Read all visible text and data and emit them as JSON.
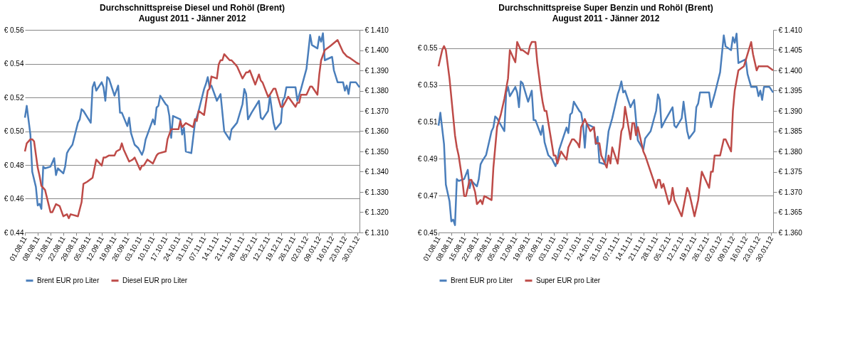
{
  "chart_data": [
    {
      "type": "line",
      "title": "Durchschnittspreise Diesel und Rohöl (Brent)",
      "subtitle": "August 2011 - Jänner 2012",
      "grid": "y",
      "legend": "bottom",
      "xlim": [
        "2011-08-01",
        "2012-01-31"
      ],
      "xticks": [
        {
          "value": "2011-08-01",
          "label": "01.08.11"
        },
        {
          "value": "2011-08-08",
          "label": "08.08.11"
        },
        {
          "value": "2011-08-15",
          "label": "15.08.11"
        },
        {
          "value": "2011-08-22",
          "label": "22.08.11"
        },
        {
          "value": "2011-08-29",
          "label": "29.08.11"
        },
        {
          "value": "2011-09-05",
          "label": "05.09.11"
        },
        {
          "value": "2011-09-12",
          "label": "12.09.11"
        },
        {
          "value": "2011-09-19",
          "label": "19.09.11"
        },
        {
          "value": "2011-09-26",
          "label": "26.09.11"
        },
        {
          "value": "2011-10-03",
          "label": "03.10.11"
        },
        {
          "value": "2011-10-10",
          "label": "10.10.11"
        },
        {
          "value": "2011-10-17",
          "label": "17.10.11"
        },
        {
          "value": "2011-10-24",
          "label": "24.10.11"
        },
        {
          "value": "2011-10-31",
          "label": "31.10.11"
        },
        {
          "value": "2011-11-07",
          "label": "07.11.11"
        },
        {
          "value": "2011-11-14",
          "label": "14.11.11"
        },
        {
          "value": "2011-11-21",
          "label": "21.11.11"
        },
        {
          "value": "2011-11-28",
          "label": "28.11.11"
        },
        {
          "value": "2011-12-05",
          "label": "05.12.11"
        },
        {
          "value": "2011-12-12",
          "label": "12.12.11"
        },
        {
          "value": "2011-12-19",
          "label": "19.12.11"
        },
        {
          "value": "2011-12-26",
          "label": "26.12.11"
        },
        {
          "value": "2012-01-02",
          "label": "02.01.12"
        },
        {
          "value": "2012-01-09",
          "label": "09.01.12"
        },
        {
          "value": "2012-01-16",
          "label": "16.01.12"
        },
        {
          "value": "2012-01-23",
          "label": "23.01.12"
        },
        {
          "value": "2012-01-30",
          "label": "30.01.12"
        }
      ],
      "ylim": [
        0.44,
        0.56
      ],
      "yticks": [
        {
          "value": 0.44,
          "label": "€ 0.44"
        },
        {
          "value": 0.46,
          "label": "€ 0.46"
        },
        {
          "value": 0.48,
          "label": "€ 0.48"
        },
        {
          "value": 0.5,
          "label": "€ 0.50"
        },
        {
          "value": 0.52,
          "label": "€ 0.52"
        },
        {
          "value": 0.54,
          "label": "€ 0.54"
        },
        {
          "value": 0.56,
          "label": "€ 0.56"
        }
      ],
      "y2lim": [
        1.31,
        1.41
      ],
      "y2ticks": [
        {
          "value": 1.31,
          "label": "€ 1.310"
        },
        {
          "value": 1.32,
          "label": "€ 1.320"
        },
        {
          "value": 1.33,
          "label": "€ 1.330"
        },
        {
          "value": 1.34,
          "label": "€ 1.340"
        },
        {
          "value": 1.35,
          "label": "€ 1.350"
        },
        {
          "value": 1.36,
          "label": "€ 1.360"
        },
        {
          "value": 1.37,
          "label": "€ 1.370"
        },
        {
          "value": 1.38,
          "label": "€ 1.380"
        },
        {
          "value": 1.39,
          "label": "€ 1.390"
        },
        {
          "value": 1.4,
          "label": "€ 1.400"
        },
        {
          "value": 1.41,
          "label": "€ 1.410"
        }
      ],
      "series": [
        {
          "name": "Brent EUR pro Liter",
          "color": "#4a7ebb",
          "x": [
            "2011-08-01",
            "2011-08-02",
            "2011-08-04",
            "2011-08-05",
            "2011-08-07",
            "2011-08-08",
            "2011-08-09",
            "2011-08-10",
            "2011-08-11",
            "2011-08-12",
            "2011-08-15",
            "2011-08-17",
            "2011-08-18",
            "2011-08-19",
            "2011-08-22",
            "2011-08-23",
            "2011-08-24",
            "2011-08-25",
            "2011-08-27",
            "2011-08-30",
            "2011-08-31",
            "2011-09-01",
            "2011-09-02",
            "2011-09-06",
            "2011-09-07",
            "2011-09-08",
            "2011-09-09",
            "2011-09-12",
            "2011-09-13",
            "2011-09-14",
            "2011-09-15",
            "2011-09-16",
            "2011-09-19",
            "2011-09-21",
            "2011-09-22",
            "2011-09-23",
            "2011-09-26",
            "2011-09-27",
            "2011-09-28",
            "2011-09-30",
            "2011-10-02",
            "2011-10-04",
            "2011-10-05",
            "2011-10-06",
            "2011-10-10",
            "2011-10-11",
            "2011-10-12",
            "2011-10-13",
            "2011-10-14",
            "2011-10-17",
            "2011-10-18",
            "2011-10-19",
            "2011-10-20",
            "2011-10-21",
            "2011-10-25",
            "2011-10-26",
            "2011-10-27",
            "2011-10-28",
            "2011-10-31",
            "2011-11-01",
            "2011-11-02",
            "2011-11-04",
            "2011-11-07",
            "2011-11-08",
            "2011-11-09",
            "2011-11-10",
            "2011-11-11",
            "2011-11-14",
            "2011-11-16",
            "2011-11-18",
            "2011-11-21",
            "2011-11-22",
            "2011-11-25",
            "2011-11-28",
            "2011-11-29",
            "2011-11-30",
            "2011-12-01",
            "2011-12-03",
            "2011-12-07",
            "2011-12-08",
            "2011-12-09",
            "2011-12-12",
            "2011-12-13",
            "2011-12-15",
            "2011-12-16",
            "2011-12-19",
            "2011-12-20",
            "2011-12-21",
            "2011-12-22",
            "2011-12-27",
            "2011-12-28",
            "2011-12-30",
            "2012-01-02",
            "2012-01-04",
            "2012-01-05",
            "2012-01-08",
            "2012-01-09",
            "2012-01-10",
            "2012-01-11",
            "2012-01-12",
            "2012-01-16",
            "2012-01-17",
            "2012-01-19",
            "2012-01-22",
            "2012-01-23",
            "2012-01-24",
            "2012-01-25",
            "2012-01-26",
            "2012-01-29",
            "2012-01-31"
          ],
          "values": [
            0.508,
            0.515,
            0.498,
            0.476,
            0.467,
            0.456,
            0.457,
            0.454,
            0.479,
            0.478,
            0.479,
            0.484,
            0.474,
            0.478,
            0.475,
            0.479,
            0.487,
            0.489,
            0.492,
            0.505,
            0.507,
            0.513,
            0.512,
            0.505,
            0.526,
            0.529,
            0.524,
            0.529,
            0.526,
            0.518,
            0.532,
            0.531,
            0.521,
            0.527,
            0.511,
            0.511,
            0.503,
            0.508,
            0.499,
            0.492,
            0.49,
            0.486,
            0.489,
            0.495,
            0.507,
            0.504,
            0.514,
            0.515,
            0.521,
            0.516,
            0.515,
            0.509,
            0.496,
            0.509,
            0.507,
            0.498,
            0.502,
            0.488,
            0.487,
            0.496,
            0.505,
            0.512,
            0.525,
            0.528,
            0.532,
            0.526,
            0.527,
            0.518,
            0.522,
            0.5,
            0.495,
            0.501,
            0.505,
            0.516,
            0.525,
            0.522,
            0.507,
            0.511,
            0.518,
            0.508,
            0.507,
            0.512,
            0.521,
            0.505,
            0.501,
            0.505,
            0.518,
            0.52,
            0.526,
            0.526,
            0.518,
            0.525,
            0.537,
            0.557,
            0.551,
            0.549,
            0.556,
            0.553,
            0.558,
            0.542,
            0.544,
            0.536,
            0.529,
            0.529,
            0.524,
            0.527,
            0.522,
            0.529,
            0.529,
            0.526
          ]
        },
        {
          "name": "Diesel EUR pro Liter",
          "color": "#be4b48",
          "axis": "y2",
          "x": [
            "2011-08-01",
            "2011-08-02",
            "2011-08-04",
            "2011-08-05",
            "2011-08-06",
            "2011-08-08",
            "2011-08-09",
            "2011-08-10",
            "2011-08-12",
            "2011-08-15",
            "2011-08-16",
            "2011-08-18",
            "2011-08-20",
            "2011-08-22",
            "2011-08-24",
            "2011-08-25",
            "2011-08-26",
            "2011-08-30",
            "2011-09-01",
            "2011-09-02",
            "2011-09-04",
            "2011-09-07",
            "2011-09-09",
            "2011-09-12",
            "2011-09-13",
            "2011-09-14",
            "2011-09-16",
            "2011-09-19",
            "2011-09-20",
            "2011-09-22",
            "2011-09-23",
            "2011-09-24",
            "2011-09-27",
            "2011-09-29",
            "2011-09-30",
            "2011-10-03",
            "2011-10-04",
            "2011-10-05",
            "2011-10-07",
            "2011-10-10",
            "2011-10-12",
            "2011-10-13",
            "2011-10-17",
            "2011-10-18",
            "2011-10-20",
            "2011-10-21",
            "2011-10-24",
            "2011-10-25",
            "2011-10-26",
            "2011-10-28",
            "2011-10-30",
            "2011-11-01",
            "2011-11-02",
            "2011-11-03",
            "2011-11-04",
            "2011-11-07",
            "2011-11-09",
            "2011-11-10",
            "2011-11-11",
            "2011-11-14",
            "2011-11-15",
            "2011-11-16",
            "2011-11-17",
            "2011-11-18",
            "2011-11-21",
            "2011-11-22",
            "2011-11-24",
            "2011-11-25",
            "2011-11-28",
            "2011-11-30",
            "2011-12-01",
            "2011-12-02",
            "2011-12-05",
            "2011-12-07",
            "2011-12-08",
            "2011-12-09",
            "2011-12-12",
            "2011-12-13",
            "2011-12-15",
            "2011-12-16",
            "2011-12-19",
            "2011-12-20",
            "2011-12-23",
            "2011-12-27",
            "2011-12-28",
            "2011-12-29",
            "2011-12-30",
            "2012-01-02",
            "2012-01-04",
            "2012-01-05",
            "2012-01-08",
            "2012-01-09",
            "2012-01-10",
            "2012-01-12",
            "2012-01-15",
            "2012-01-19",
            "2012-01-22",
            "2012-01-23",
            "2012-01-24",
            "2012-01-26",
            "2012-01-29",
            "2012-01-31"
          ],
          "values": [
            1.35,
            1.354,
            1.356,
            1.356,
            1.355,
            1.342,
            1.338,
            1.333,
            1.331,
            1.32,
            1.32,
            1.324,
            1.323,
            1.318,
            1.319,
            1.317,
            1.319,
            1.318,
            1.325,
            1.334,
            1.335,
            1.337,
            1.346,
            1.343,
            1.347,
            1.347,
            1.348,
            1.348,
            1.35,
            1.351,
            1.354,
            1.351,
            1.345,
            1.346,
            1.347,
            1.341,
            1.343,
            1.343,
            1.346,
            1.344,
            1.348,
            1.349,
            1.35,
            1.356,
            1.361,
            1.361,
            1.361,
            1.365,
            1.362,
            1.364,
            1.363,
            1.362,
            1.366,
            1.365,
            1.37,
            1.368,
            1.38,
            1.381,
            1.387,
            1.386,
            1.393,
            1.395,
            1.395,
            1.398,
            1.395,
            1.395,
            1.393,
            1.392,
            1.386,
            1.389,
            1.389,
            1.39,
            1.383,
            1.388,
            1.385,
            1.384,
            1.377,
            1.378,
            1.381,
            1.381,
            1.372,
            1.372,
            1.377,
            1.372,
            1.374,
            1.374,
            1.378,
            1.378,
            1.382,
            1.382,
            1.378,
            1.388,
            1.395,
            1.4,
            1.402,
            1.405,
            1.399,
            1.398,
            1.397,
            1.396,
            1.394,
            1.393
          ]
        }
      ]
    },
    {
      "type": "line",
      "title": "Durchschnittspreise Super Benzin und Rohöl (Brent)",
      "subtitle": "August 2011 - Jänner 2012",
      "grid": "y",
      "legend": "bottom",
      "xlim": [
        "2011-08-01",
        "2012-01-31"
      ],
      "xticks": [
        {
          "value": "2011-08-01",
          "label": "01.08.11"
        },
        {
          "value": "2011-08-08",
          "label": "08.08.11"
        },
        {
          "value": "2011-08-15",
          "label": "15.08.11"
        },
        {
          "value": "2011-08-22",
          "label": "22.08.11"
        },
        {
          "value": "2011-08-29",
          "label": "29.08.11"
        },
        {
          "value": "2011-09-05",
          "label": "05.09.11"
        },
        {
          "value": "2011-09-12",
          "label": "12.09.11"
        },
        {
          "value": "2011-09-19",
          "label": "19.09.11"
        },
        {
          "value": "2011-09-26",
          "label": "26.09.11"
        },
        {
          "value": "2011-10-03",
          "label": "03.10.11"
        },
        {
          "value": "2011-10-10",
          "label": "10.10.11"
        },
        {
          "value": "2011-10-17",
          "label": "17.10.11"
        },
        {
          "value": "2011-10-24",
          "label": "24.10.11"
        },
        {
          "value": "2011-10-31",
          "label": "31.10.11"
        },
        {
          "value": "2011-11-07",
          "label": "07.11.11"
        },
        {
          "value": "2011-11-14",
          "label": "14.11.11"
        },
        {
          "value": "2011-11-21",
          "label": "21.11.11"
        },
        {
          "value": "2011-11-28",
          "label": "28.11.11"
        },
        {
          "value": "2011-12-05",
          "label": "05.12.11"
        },
        {
          "value": "2011-12-12",
          "label": "12.12.11"
        },
        {
          "value": "2011-12-19",
          "label": "19.12.11"
        },
        {
          "value": "2011-12-26",
          "label": "26.12.11"
        },
        {
          "value": "2012-01-02",
          "label": "02.01.12"
        },
        {
          "value": "2012-01-09",
          "label": "09.01.12"
        },
        {
          "value": "2012-01-16",
          "label": "16.01.12"
        },
        {
          "value": "2012-01-23",
          "label": "23.01.12"
        },
        {
          "value": "2012-01-30",
          "label": "30.01.12"
        }
      ],
      "ylim": [
        0.45,
        0.56
      ],
      "yticks": [
        {
          "value": 0.45,
          "label": "€ 0.45"
        },
        {
          "value": 0.47,
          "label": "€ 0.47"
        },
        {
          "value": 0.49,
          "label": "€ 0.49"
        },
        {
          "value": 0.51,
          "label": "€ 0.51"
        },
        {
          "value": 0.53,
          "label": "€ 0.53"
        },
        {
          "value": 0.55,
          "label": "€ 0.55"
        }
      ],
      "y2lim": [
        1.36,
        1.41
      ],
      "y2ticks": [
        {
          "value": 1.36,
          "label": "€ 1.360"
        },
        {
          "value": 1.365,
          "label": "€ 1.365"
        },
        {
          "value": 1.37,
          "label": "€ 1.370"
        },
        {
          "value": 1.375,
          "label": "€ 1.375"
        },
        {
          "value": 1.38,
          "label": "€ 1.380"
        },
        {
          "value": 1.385,
          "label": "€ 1.385"
        },
        {
          "value": 1.39,
          "label": "€ 1.390"
        },
        {
          "value": 1.395,
          "label": "€ 1.395"
        },
        {
          "value": 1.4,
          "label": "€ 1.400"
        },
        {
          "value": 1.405,
          "label": "€ 1.405"
        },
        {
          "value": 1.41,
          "label": "€ 1.410"
        }
      ],
      "series": [
        {
          "name": "Brent EUR pro Liter",
          "color": "#4a7ebb",
          "x": [
            "2011-08-01",
            "2011-08-02",
            "2011-08-04",
            "2011-08-05",
            "2011-08-07",
            "2011-08-08",
            "2011-08-09",
            "2011-08-10",
            "2011-08-11",
            "2011-08-12",
            "2011-08-15",
            "2011-08-17",
            "2011-08-18",
            "2011-08-19",
            "2011-08-22",
            "2011-08-23",
            "2011-08-24",
            "2011-08-25",
            "2011-08-27",
            "2011-08-30",
            "2011-08-31",
            "2011-09-01",
            "2011-09-02",
            "2011-09-06",
            "2011-09-07",
            "2011-09-08",
            "2011-09-09",
            "2011-09-12",
            "2011-09-13",
            "2011-09-14",
            "2011-09-15",
            "2011-09-16",
            "2011-09-19",
            "2011-09-21",
            "2011-09-22",
            "2011-09-23",
            "2011-09-26",
            "2011-09-27",
            "2011-09-28",
            "2011-09-30",
            "2011-10-02",
            "2011-10-04",
            "2011-10-05",
            "2011-10-06",
            "2011-10-10",
            "2011-10-11",
            "2011-10-12",
            "2011-10-13",
            "2011-10-14",
            "2011-10-17",
            "2011-10-18",
            "2011-10-19",
            "2011-10-20",
            "2011-10-21",
            "2011-10-25",
            "2011-10-26",
            "2011-10-27",
            "2011-10-28",
            "2011-10-31",
            "2011-11-01",
            "2011-11-02",
            "2011-11-04",
            "2011-11-07",
            "2011-11-08",
            "2011-11-09",
            "2011-11-10",
            "2011-11-11",
            "2011-11-14",
            "2011-11-16",
            "2011-11-18",
            "2011-11-21",
            "2011-11-22",
            "2011-11-25",
            "2011-11-28",
            "2011-11-29",
            "2011-11-30",
            "2011-12-01",
            "2011-12-03",
            "2011-12-07",
            "2011-12-08",
            "2011-12-09",
            "2011-12-12",
            "2011-12-13",
            "2011-12-15",
            "2011-12-16",
            "2011-12-19",
            "2011-12-20",
            "2011-12-21",
            "2011-12-22",
            "2011-12-27",
            "2011-12-28",
            "2011-12-30",
            "2012-01-02",
            "2012-01-04",
            "2012-01-05",
            "2012-01-08",
            "2012-01-09",
            "2012-01-10",
            "2012-01-11",
            "2012-01-12",
            "2012-01-16",
            "2012-01-17",
            "2012-01-19",
            "2012-01-22",
            "2012-01-23",
            "2012-01-24",
            "2012-01-25",
            "2012-01-26",
            "2012-01-29",
            "2012-01-31"
          ],
          "values": [
            0.508,
            0.515,
            0.498,
            0.476,
            0.467,
            0.456,
            0.457,
            0.454,
            0.479,
            0.478,
            0.479,
            0.484,
            0.474,
            0.478,
            0.475,
            0.479,
            0.487,
            0.489,
            0.492,
            0.505,
            0.507,
            0.513,
            0.512,
            0.505,
            0.526,
            0.529,
            0.524,
            0.529,
            0.526,
            0.518,
            0.532,
            0.531,
            0.521,
            0.527,
            0.511,
            0.511,
            0.503,
            0.508,
            0.499,
            0.492,
            0.49,
            0.486,
            0.489,
            0.495,
            0.507,
            0.504,
            0.514,
            0.515,
            0.521,
            0.516,
            0.515,
            0.509,
            0.496,
            0.509,
            0.507,
            0.498,
            0.502,
            0.488,
            0.487,
            0.496,
            0.505,
            0.512,
            0.525,
            0.528,
            0.532,
            0.526,
            0.527,
            0.518,
            0.522,
            0.5,
            0.495,
            0.501,
            0.505,
            0.516,
            0.525,
            0.522,
            0.507,
            0.511,
            0.518,
            0.508,
            0.507,
            0.512,
            0.521,
            0.505,
            0.501,
            0.505,
            0.518,
            0.52,
            0.526,
            0.526,
            0.518,
            0.525,
            0.537,
            0.557,
            0.551,
            0.549,
            0.556,
            0.553,
            0.558,
            0.542,
            0.544,
            0.536,
            0.529,
            0.529,
            0.524,
            0.527,
            0.522,
            0.529,
            0.529,
            0.526
          ]
        },
        {
          "name": "Super EUR pro Liter",
          "color": "#be4b48",
          "axis": "y2",
          "x": [
            "2011-08-01",
            "2011-08-03",
            "2011-08-04",
            "2011-08-05",
            "2011-08-07",
            "2011-08-10",
            "2011-08-11",
            "2011-08-12",
            "2011-08-14",
            "2011-08-15",
            "2011-08-16",
            "2011-08-18",
            "2011-08-19",
            "2011-08-21",
            "2011-08-22",
            "2011-08-24",
            "2011-08-25",
            "2011-08-26",
            "2011-08-30",
            "2011-08-31",
            "2011-09-02",
            "2011-09-04",
            "2011-09-06",
            "2011-09-08",
            "2011-09-09",
            "2011-09-11",
            "2011-09-12",
            "2011-09-13",
            "2011-09-14",
            "2011-09-15",
            "2011-09-16",
            "2011-09-19",
            "2011-09-20",
            "2011-09-21",
            "2011-09-23",
            "2011-09-24",
            "2011-09-26",
            "2011-09-27",
            "2011-09-28",
            "2011-09-29",
            "2011-10-03",
            "2011-10-04",
            "2011-10-05",
            "2011-10-07",
            "2011-10-10",
            "2011-10-11",
            "2011-10-13",
            "2011-10-14",
            "2011-10-16",
            "2011-10-17",
            "2011-10-18",
            "2011-10-20",
            "2011-10-22",
            "2011-10-23",
            "2011-10-25",
            "2011-10-26",
            "2011-10-28",
            "2011-10-29",
            "2011-10-31",
            "2011-11-01",
            "2011-11-02",
            "2011-11-03",
            "2011-11-04",
            "2011-11-07",
            "2011-11-09",
            "2011-11-10",
            "2011-11-11",
            "2011-11-14",
            "2011-11-15",
            "2011-11-16",
            "2011-11-17",
            "2011-11-18",
            "2011-11-21",
            "2011-11-22",
            "2011-11-28",
            "2011-11-29",
            "2011-11-30",
            "2011-12-01",
            "2011-12-02",
            "2011-12-05",
            "2011-12-06",
            "2011-12-07",
            "2011-12-08",
            "2011-12-09",
            "2011-12-12",
            "2011-12-15",
            "2011-12-16",
            "2011-12-19",
            "2011-12-21",
            "2011-12-23",
            "2011-12-27",
            "2011-12-28",
            "2011-12-29",
            "2011-12-30",
            "2012-01-02",
            "2012-01-04",
            "2012-01-05",
            "2012-01-08",
            "2012-01-09",
            "2012-01-10",
            "2012-01-12",
            "2012-01-15",
            "2012-01-17",
            "2012-01-19",
            "2012-01-20",
            "2012-01-22",
            "2012-01-23",
            "2012-01-24",
            "2012-01-26",
            "2012-01-28",
            "2012-01-31"
          ],
          "values": [
            1.401,
            1.405,
            1.406,
            1.405,
            1.398,
            1.384,
            1.381,
            1.379,
            1.373,
            1.369,
            1.369,
            1.373,
            1.373,
            1.37,
            1.367,
            1.368,
            1.367,
            1.369,
            1.368,
            1.376,
            1.386,
            1.389,
            1.393,
            1.398,
            1.405,
            1.403,
            1.402,
            1.407,
            1.406,
            1.405,
            1.405,
            1.404,
            1.406,
            1.407,
            1.407,
            1.402,
            1.395,
            1.392,
            1.39,
            1.39,
            1.379,
            1.379,
            1.377,
            1.38,
            1.378,
            1.381,
            1.383,
            1.383,
            1.382,
            1.381,
            1.386,
            1.388,
            1.386,
            1.385,
            1.386,
            1.382,
            1.382,
            1.379,
            1.377,
            1.376,
            1.379,
            1.377,
            1.381,
            1.377,
            1.385,
            1.386,
            1.391,
            1.383,
            1.387,
            1.387,
            1.384,
            1.386,
            1.38,
            1.379,
            1.371,
            1.373,
            1.373,
            1.371,
            1.372,
            1.367,
            1.368,
            1.371,
            1.368,
            1.367,
            1.364,
            1.371,
            1.37,
            1.364,
            1.368,
            1.375,
            1.371,
            1.375,
            1.375,
            1.379,
            1.379,
            1.383,
            1.383,
            1.38,
            1.39,
            1.395,
            1.4,
            1.401,
            1.404,
            1.407,
            1.404,
            1.4,
            1.401,
            1.401,
            1.401,
            1.401,
            1.4
          ]
        }
      ]
    }
  ]
}
